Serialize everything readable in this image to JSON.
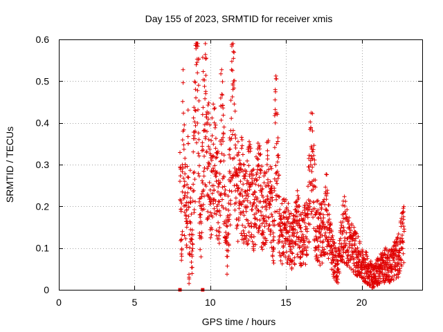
{
  "chart_data": {
    "type": "scatter",
    "title": "Day 155 of 2023, SRMTID for receiver xmis",
    "xlabel": "GPS time / hours",
    "ylabel": "SRMTID / TECUs",
    "xlim": [
      0,
      24
    ],
    "ylim": [
      0,
      0.6
    ],
    "xticks": [
      0,
      5,
      10,
      15,
      20
    ],
    "yticks": [
      0,
      0.1,
      0.2,
      0.3,
      0.4,
      0.5,
      0.6
    ],
    "ytick_labels": [
      "0",
      "0.1",
      "0.2",
      "0.3",
      "0.4",
      "0.5",
      "0.6"
    ],
    "grid": true,
    "marker": "+",
    "series_color": "#e00000",
    "anchor_points": [
      {
        "x": 8.0,
        "y": 0.26
      },
      {
        "x": 8.1,
        "y": 0.12
      },
      {
        "x": 8.2,
        "y": 0.38
      },
      {
        "x": 8.3,
        "y": 0.25
      },
      {
        "x": 8.45,
        "y": 0.15
      },
      {
        "x": 8.55,
        "y": 0.35
      },
      {
        "x": 8.6,
        "y": 0.03
      },
      {
        "x": 8.7,
        "y": 0.22
      },
      {
        "x": 8.8,
        "y": 0.08
      },
      {
        "x": 8.9,
        "y": 0.28
      },
      {
        "x": 9.0,
        "y": 0.38
      },
      {
        "x": 9.05,
        "y": 0.46
      },
      {
        "x": 9.1,
        "y": 0.585
      },
      {
        "x": 9.15,
        "y": 0.52
      },
      {
        "x": 9.25,
        "y": 0.36
      },
      {
        "x": 9.3,
        "y": 0.13
      },
      {
        "x": 9.4,
        "y": 0.16
      },
      {
        "x": 9.5,
        "y": 0.42
      },
      {
        "x": 9.6,
        "y": 0.32
      },
      {
        "x": 9.7,
        "y": 0.47
      },
      {
        "x": 9.8,
        "y": 0.29
      },
      {
        "x": 9.9,
        "y": 0.36
      },
      {
        "x": 10.0,
        "y": 0.22
      },
      {
        "x": 10.2,
        "y": 0.32
      },
      {
        "x": 10.4,
        "y": 0.26
      },
      {
        "x": 10.6,
        "y": 0.19
      },
      {
        "x": 10.7,
        "y": 0.44
      },
      {
        "x": 10.9,
        "y": 0.27
      },
      {
        "x": 11.1,
        "y": 0.08
      },
      {
        "x": 11.3,
        "y": 0.28
      },
      {
        "x": 11.5,
        "y": 0.48
      },
      {
        "x": 11.7,
        "y": 0.22
      },
      {
        "x": 12.0,
        "y": 0.26
      },
      {
        "x": 12.3,
        "y": 0.2
      },
      {
        "x": 12.6,
        "y": 0.24
      },
      {
        "x": 12.9,
        "y": 0.18
      },
      {
        "x": 13.2,
        "y": 0.25
      },
      {
        "x": 13.5,
        "y": 0.17
      },
      {
        "x": 13.8,
        "y": 0.25
      },
      {
        "x": 14.0,
        "y": 0.22
      },
      {
        "x": 14.2,
        "y": 0.1
      },
      {
        "x": 14.3,
        "y": 0.4
      },
      {
        "x": 14.6,
        "y": 0.13
      },
      {
        "x": 15.0,
        "y": 0.15
      },
      {
        "x": 15.4,
        "y": 0.11
      },
      {
        "x": 15.8,
        "y": 0.16
      },
      {
        "x": 16.0,
        "y": 0.12
      },
      {
        "x": 16.4,
        "y": 0.14
      },
      {
        "x": 16.7,
        "y": 0.34
      },
      {
        "x": 17.0,
        "y": 0.14
      },
      {
        "x": 17.4,
        "y": 0.13
      },
      {
        "x": 17.7,
        "y": 0.19
      },
      {
        "x": 18.0,
        "y": 0.09
      },
      {
        "x": 18.4,
        "y": 0.05
      },
      {
        "x": 18.8,
        "y": 0.15
      },
      {
        "x": 19.2,
        "y": 0.11
      },
      {
        "x": 19.6,
        "y": 0.09
      },
      {
        "x": 20.0,
        "y": 0.06
      },
      {
        "x": 20.4,
        "y": 0.05
      },
      {
        "x": 20.8,
        "y": 0.03
      },
      {
        "x": 21.2,
        "y": 0.05
      },
      {
        "x": 21.6,
        "y": 0.06
      },
      {
        "x": 22.0,
        "y": 0.06
      },
      {
        "x": 22.4,
        "y": 0.08
      },
      {
        "x": 22.8,
        "y": 0.14
      }
    ],
    "zero_markers": [
      {
        "x": 8.0,
        "y": 0
      },
      {
        "x": 9.5,
        "y": 0
      }
    ]
  }
}
